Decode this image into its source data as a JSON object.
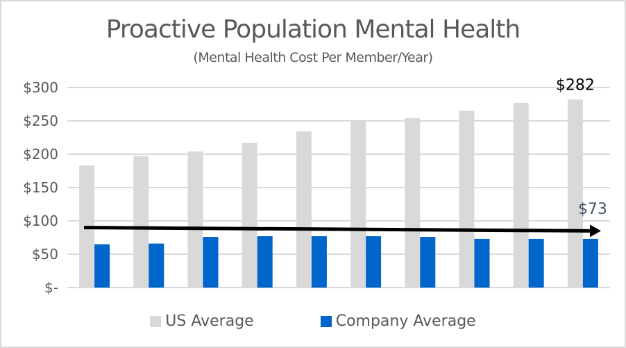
{
  "chart_data": {
    "type": "bar",
    "title": "Proactive Population Mental Health",
    "subtitle": "(Mental Health Cost Per Member/Year)",
    "xlabel": "",
    "ylabel": "",
    "categories": [
      "1",
      "2",
      "3",
      "4",
      "5",
      "6",
      "7",
      "8",
      "9",
      "10"
    ],
    "show_category_labels": false,
    "ylim": [
      0,
      300
    ],
    "yticks": [
      0,
      50,
      100,
      150,
      200,
      250,
      300
    ],
    "ytick_labels": [
      "$-",
      "$50",
      "$100",
      "$150",
      "$200",
      "$250",
      "$300"
    ],
    "grid": true,
    "legend_position": "bottom",
    "series": [
      {
        "name": "US Average",
        "color": "#d9d9d9",
        "values": [
          183,
          197,
          204,
          217,
          234,
          249,
          254,
          265,
          277,
          282
        ]
      },
      {
        "name": "Company Average",
        "color": "#0066cc",
        "values": [
          65,
          66,
          76,
          77,
          77,
          77,
          76,
          73,
          73,
          73
        ]
      }
    ],
    "annotations": [
      {
        "text": "$282",
        "series": "US Average",
        "index": 9,
        "color": "#000000"
      },
      {
        "text": "$73",
        "series": "Company Average",
        "index": 9,
        "color": "#44546a"
      }
    ],
    "trend_arrow": {
      "from_value": 90,
      "to_value": 85,
      "color": "#000000"
    }
  }
}
